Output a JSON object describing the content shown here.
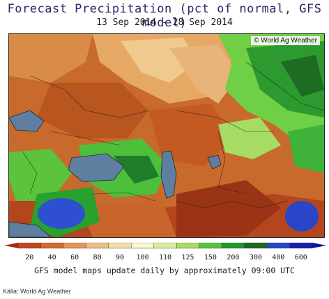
{
  "header": {
    "title": "Forecast Precipitation (pct of normal, GFS model)",
    "date_range": "13 Sep 2014 - 28 Sep 2014"
  },
  "map": {
    "credit": "© World Ag Weather"
  },
  "legend": {
    "tick_labels": [
      "20",
      "40",
      "60",
      "80",
      "90",
      "100",
      "110",
      "125",
      "150",
      "200",
      "300",
      "400",
      "600"
    ],
    "colors": [
      "#c2461d",
      "#d56b2a",
      "#e49655",
      "#eebf86",
      "#f5dfa9",
      "#fbf7cf",
      "#d9ef9a",
      "#a9dd5b",
      "#58c23a",
      "#1e9a2a",
      "#1b6a22",
      "#2548c8",
      "#1a1fb0"
    ],
    "low_arrow_color": "#a82818",
    "high_arrow_color": "#1212a0"
  },
  "footer": {
    "note": "GFS model maps update daily by approximately 09:00 UTC",
    "source": "Källa: World Ag Weather"
  }
}
